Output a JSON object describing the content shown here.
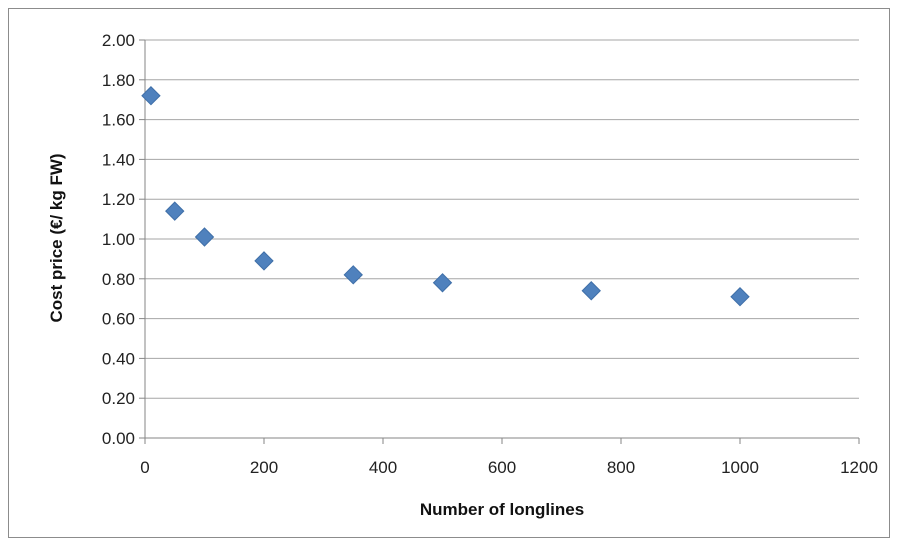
{
  "chart_data": {
    "type": "scatter",
    "title": "",
    "xlabel": "Number of longlines",
    "ylabel": "Cost price (€/ kg FW)",
    "xlim": [
      0,
      1200
    ],
    "ylim": [
      0,
      2.0
    ],
    "x_ticks": [
      "0",
      "200",
      "400",
      "600",
      "800",
      "1000",
      "1200"
    ],
    "y_ticks": [
      "0.00",
      "0.20",
      "0.40",
      "0.60",
      "0.80",
      "1.00",
      "1.20",
      "1.40",
      "1.60",
      "1.80",
      "2.00"
    ],
    "grid": "horizontal major gridlines",
    "legend": "none",
    "marker": "diamond",
    "series": [
      {
        "color": "#4f81bd",
        "points": [
          {
            "x": 10,
            "y": 1.72
          },
          {
            "x": 50,
            "y": 1.14
          },
          {
            "x": 100,
            "y": 1.01
          },
          {
            "x": 200,
            "y": 0.89
          },
          {
            "x": 350,
            "y": 0.82
          },
          {
            "x": 500,
            "y": 0.78
          },
          {
            "x": 750,
            "y": 0.74
          },
          {
            "x": 1000,
            "y": 0.71
          }
        ]
      }
    ]
  }
}
